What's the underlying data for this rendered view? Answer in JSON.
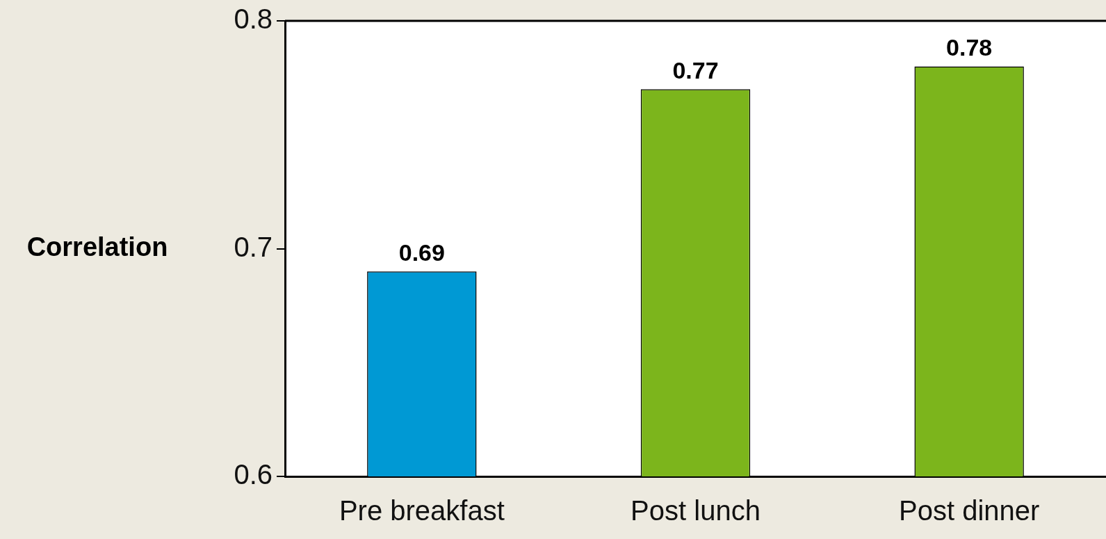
{
  "chart_data": {
    "type": "bar",
    "ylabel": "Correlation",
    "categories": [
      "Pre breakfast",
      "Post lunch",
      "Post dinner"
    ],
    "values": [
      0.69,
      0.77,
      0.78
    ],
    "colors": [
      "#0099d4",
      "#7cb51c",
      "#7cb51c"
    ],
    "ylim": [
      0.6,
      0.8
    ],
    "yticks": [
      0.6,
      0.7,
      0.8
    ],
    "data_labels": true,
    "grid": false,
    "legend": false
  }
}
